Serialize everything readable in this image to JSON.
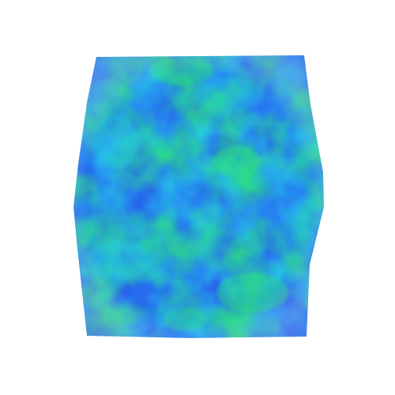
{
  "scene": {
    "background": "#ffffff",
    "subject": "volume-render",
    "colormap": {
      "low": "#1f4fe8",
      "mid": "#1c86f0",
      "cyan": "#1ec8e6",
      "high": "#22e07a",
      "edge": "#5a63e0"
    }
  }
}
